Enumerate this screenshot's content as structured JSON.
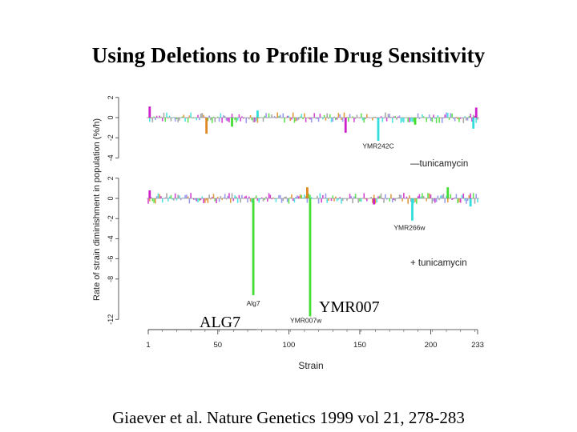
{
  "slide": {
    "title": "Using Deletions to Profile Drug Sensitivity",
    "callouts": {
      "alg7": "ALG7",
      "ymr007": "YMR007"
    },
    "citation": "Giaever et al. Nature Genetics 1999 vol 21, 278-283"
  },
  "chart_data": {
    "type": "bar",
    "ylabel": "Rate of strain diminishment in population (%/h)",
    "xlabel": "Strain",
    "xlim": [
      1,
      233
    ],
    "xticks": [
      "1",
      "50",
      "100",
      "150",
      "200",
      "233"
    ],
    "xtick_values": [
      1,
      50,
      100,
      150,
      200,
      233
    ],
    "grid": false,
    "palette": [
      "#cc22cc",
      "#33dddd",
      "#44dd33",
      "#dd8822",
      "#8888ee",
      "#999999"
    ],
    "panels": [
      {
        "name": "upper",
        "condition_label": "—tunicamycin",
        "ylim": [
          -4.2,
          2.5
        ],
        "yticks": [
          "2",
          "0",
          "-2",
          "-4"
        ],
        "ytick_values": [
          2,
          0,
          -2,
          -4
        ],
        "annotations": [
          {
            "text": "YMR242C",
            "x": 163,
            "y": -2.8
          }
        ],
        "notable_bars": [
          {
            "x": 163,
            "value": -2.3,
            "color": "#33dddd"
          },
          {
            "x": 42,
            "value": -1.6,
            "color": "#dd8822"
          },
          {
            "x": 140,
            "value": -1.5,
            "color": "#cc22cc"
          },
          {
            "x": 230,
            "value": -1.1,
            "color": "#33dddd"
          },
          {
            "x": 60,
            "value": -0.9,
            "color": "#44dd33"
          },
          {
            "x": 189,
            "value": -0.7,
            "color": "#44dd33"
          },
          {
            "x": 2,
            "value": 1.1,
            "color": "#cc22cc"
          },
          {
            "x": 232,
            "value": 1.0,
            "color": "#cc22cc"
          },
          {
            "x": 78,
            "value": 0.7,
            "color": "#33dddd"
          }
        ]
      },
      {
        "name": "lower",
        "condition_label": "+ tunicamycin",
        "ylim": [
          -12.5,
          2.5
        ],
        "yticks": [
          "2",
          "0",
          "-2",
          "-4",
          "-6",
          "-8",
          "-12"
        ],
        "ytick_values": [
          2,
          0,
          -2,
          -4,
          -6,
          -8,
          -12
        ],
        "annotations": [
          {
            "text": "YMR266w",
            "x": 185,
            "y": -2.9
          },
          {
            "text": "Alg7",
            "x": 75,
            "y": -10.4
          },
          {
            "text": "YMR007w",
            "x": 112,
            "y": -12.1
          }
        ],
        "notable_bars": [
          {
            "x": 75,
            "value": -9.6,
            "color": "#44dd33"
          },
          {
            "x": 115,
            "value": -11.7,
            "color": "#44dd33"
          },
          {
            "x": 187,
            "value": -2.2,
            "color": "#33dddd"
          },
          {
            "x": 228,
            "value": -0.8,
            "color": "#33dddd"
          },
          {
            "x": 113,
            "value": 1.1,
            "color": "#dd8822"
          },
          {
            "x": 212,
            "value": 1.1,
            "color": "#44dd33"
          },
          {
            "x": 2,
            "value": 0.8,
            "color": "#cc22cc"
          },
          {
            "x": 160,
            "value": -0.6,
            "color": "#cc22cc"
          }
        ]
      }
    ]
  }
}
